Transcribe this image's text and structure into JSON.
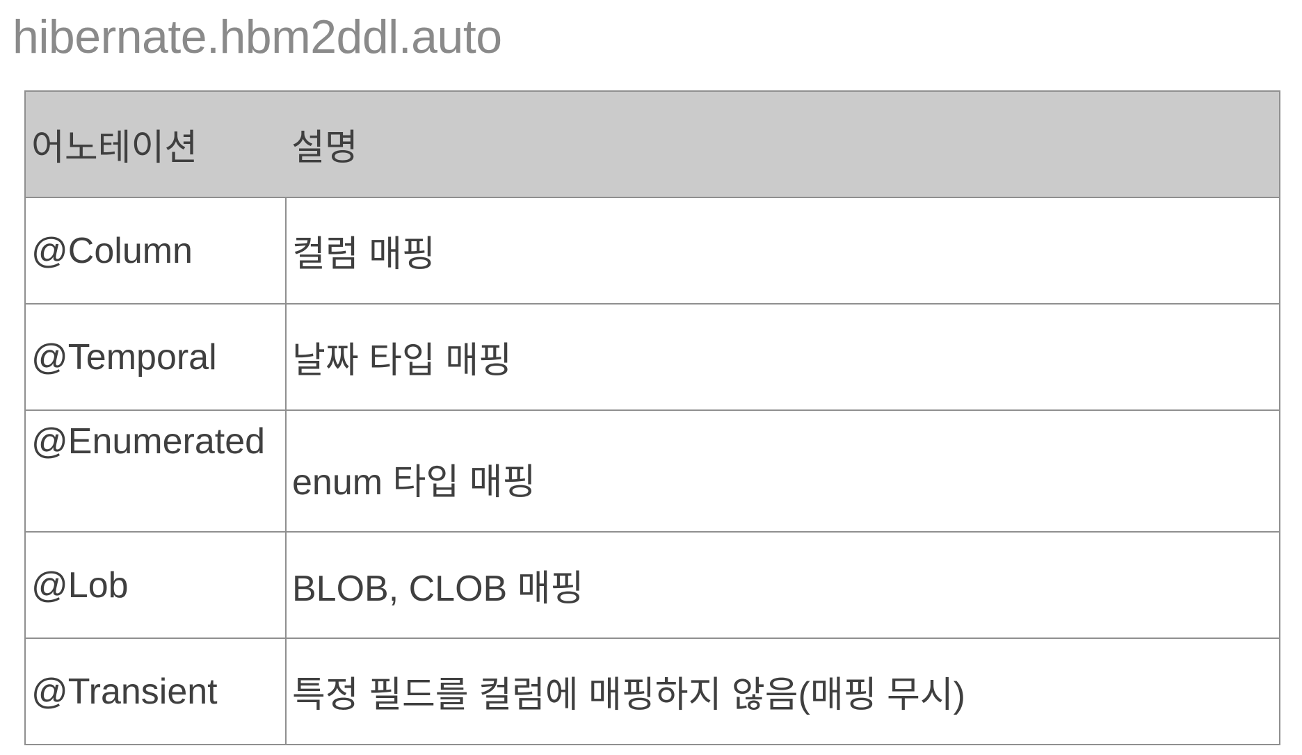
{
  "page": {
    "title": "hibernate.hbm2ddl.auto"
  },
  "table": {
    "headers": {
      "annotation": "어노테이션",
      "description": "설명"
    },
    "rows": [
      {
        "annotation": "@Column",
        "description": "컬럼 매핑"
      },
      {
        "annotation": "@Temporal",
        "description": "날짜 타입 매핑"
      },
      {
        "annotation": "@Enumerated",
        "description": "enum 타입 매핑"
      },
      {
        "annotation": "@Lob",
        "description": "BLOB, CLOB 매핑"
      },
      {
        "annotation": "@Transient",
        "description": "특정 필드를 컬럼에 매핑하지 않음(매핑 무시)"
      }
    ]
  },
  "colors": {
    "header_background": "#cbcbcb",
    "border": "#8f8f8f",
    "title_text": "#8a8a8a",
    "body_text": "#3f3f3f"
  }
}
